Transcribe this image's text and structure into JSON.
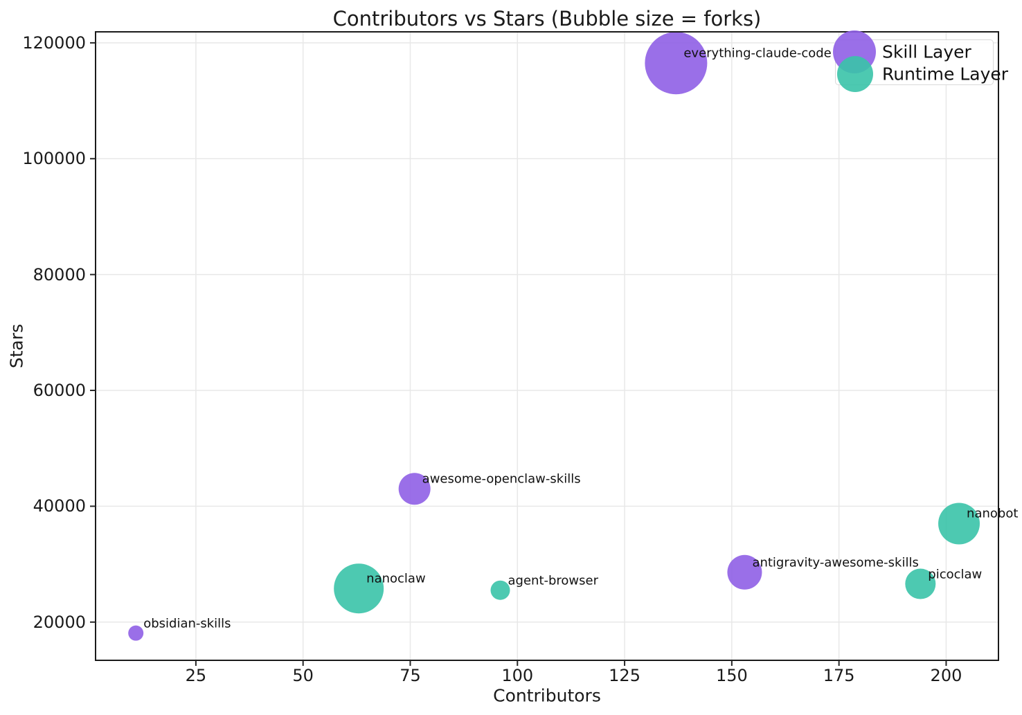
{
  "chart_data": {
    "type": "scatter",
    "title": "Contributors vs Stars (Bubble size = forks)",
    "xlabel": "Contributors",
    "ylabel": "Stars",
    "xlim": [
      1.6,
      212.2
    ],
    "ylim": [
      13400,
      121900
    ],
    "x_ticks": [
      25,
      50,
      75,
      100,
      125,
      150,
      175,
      200
    ],
    "y_ticks": [
      20000,
      40000,
      60000,
      80000,
      100000,
      120000
    ],
    "grid": true,
    "legend_position": "upper right",
    "series": [
      {
        "name": "Skill Layer",
        "color": "#8F5FE6"
      },
      {
        "name": "Runtime Layer",
        "color": "#3AC3A9"
      }
    ],
    "points": [
      {
        "label": "everything-claude-code",
        "series": "Skill Layer",
        "contributors": 137,
        "stars": 116500,
        "radius_px": 45
      },
      {
        "label": "awesome-openclaw-skills",
        "series": "Skill Layer",
        "contributors": 76,
        "stars": 43000,
        "radius_px": 23
      },
      {
        "label": "antigravity-awesome-skills",
        "series": "Skill Layer",
        "contributors": 153,
        "stars": 28600,
        "radius_px": 25
      },
      {
        "label": "obsidian-skills",
        "series": "Skill Layer",
        "contributors": 11,
        "stars": 18100,
        "radius_px": 11
      },
      {
        "label": "nanoclaw",
        "series": "Runtime Layer",
        "contributors": 63,
        "stars": 25800,
        "radius_px": 36
      },
      {
        "label": "agent-browser",
        "series": "Runtime Layer",
        "contributors": 96,
        "stars": 25500,
        "radius_px": 14
      },
      {
        "label": "nanobot",
        "series": "Runtime Layer",
        "contributors": 203,
        "stars": 37000,
        "radius_px": 30
      },
      {
        "label": "picoclaw",
        "series": "Runtime Layer",
        "contributors": 194,
        "stars": 26600,
        "radius_px": 22
      }
    ],
    "legend": [
      {
        "label": "Skill Layer",
        "color": "#8F5FE6"
      },
      {
        "label": "Runtime Layer",
        "color": "#3AC3A9"
      }
    ]
  }
}
